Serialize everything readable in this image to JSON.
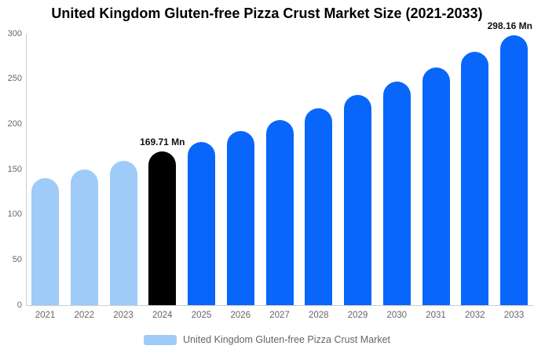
{
  "chart_data": {
    "type": "bar",
    "title": "United Kingdom Gluten-free Pizza Crust Market Size (2021-2033)",
    "categories": [
      "2021",
      "2022",
      "2023",
      "2024",
      "2025",
      "2026",
      "2027",
      "2028",
      "2029",
      "2030",
      "2031",
      "2032",
      "2033"
    ],
    "series": [
      {
        "name": "United Kingdom Gluten-free Pizza Crust Market",
        "values": [
          140.6,
          149.7,
          159.4,
          169.71,
          180.7,
          192.3,
          204.8,
          218.0,
          232.1,
          247.1,
          263.0,
          280.0,
          298.16
        ]
      }
    ],
    "xlabel": "",
    "ylabel": "",
    "ylim": [
      0,
      300
    ],
    "yticks": [
      0,
      50,
      100,
      150,
      200,
      250,
      300
    ],
    "grid": false,
    "legend_position": "bottom",
    "bar_colors": [
      "#9ECBF8",
      "#9ECBF8",
      "#9ECBF8",
      "#000000",
      "#0866FB",
      "#0866FB",
      "#0866FB",
      "#0866FB",
      "#0866FB",
      "#0866FB",
      "#0866FB",
      "#0866FB",
      "#0866FB"
    ],
    "annotations": [
      {
        "category": "2024",
        "text": "169.71 Mn"
      },
      {
        "category": "2033",
        "text": "298.16 Mn"
      }
    ]
  },
  "legend": {
    "label": "United Kingdom Gluten-free Pizza Crust Market",
    "swatch_color": "#9ECBF8"
  },
  "colors": {
    "historical_bar": "#9ECBF8",
    "highlight_bar": "#000000",
    "forecast_bar": "#0866FB",
    "axis_line": "#CCCCCC",
    "tick_text": "#666666",
    "annotation_text": "#111111",
    "title_text": "#000000",
    "background": "#FFFFFF"
  }
}
